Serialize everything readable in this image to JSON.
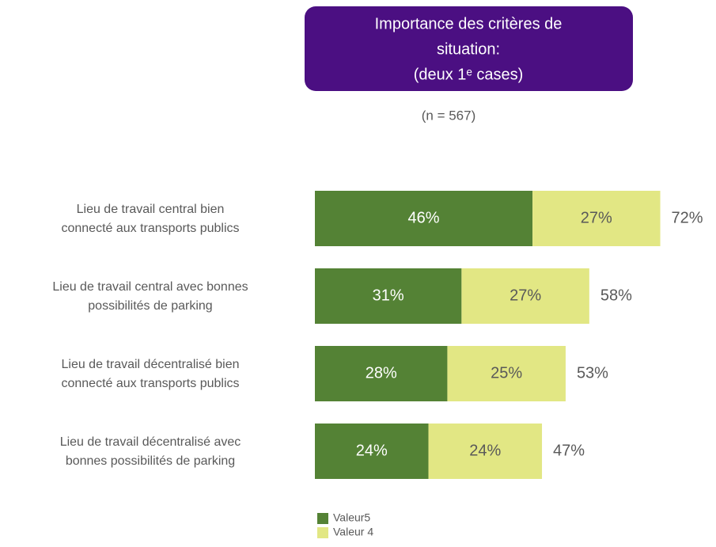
{
  "chart_data": {
    "type": "stacked_barh",
    "title": [
      "Importance des critères de",
      "situation:",
      "(deux 1ᵉ cases)"
    ],
    "subtitle": "(n = 567)",
    "categories": [
      [
        "Lieu de travail central bien",
        "connecté aux transports publics"
      ],
      [
        "Lieu de travail central avec bonnes",
        "possibilités de parking"
      ],
      [
        "Lieu de travail décentralisé  bien",
        "connecté aux transports publics"
      ],
      [
        "Lieu de travail décentralisé  avec",
        "bonnes possibilités de parking"
      ]
    ],
    "series": [
      {
        "name": "Valeur5",
        "color": "#548235",
        "values": [
          46,
          31,
          28,
          24
        ],
        "value_labels": [
          "46%",
          "31%",
          "28%",
          "24%"
        ]
      },
      {
        "name": "Valeur 4",
        "color": "#e2e784",
        "values": [
          27,
          27,
          25,
          24
        ],
        "value_labels": [
          "27%",
          "27%",
          "25%",
          "24%"
        ]
      }
    ],
    "totals": [
      72,
      58,
      53,
      47
    ],
    "total_labels": [
      "72%",
      "58%",
      "53%",
      "47%"
    ],
    "legend": "bottom"
  }
}
